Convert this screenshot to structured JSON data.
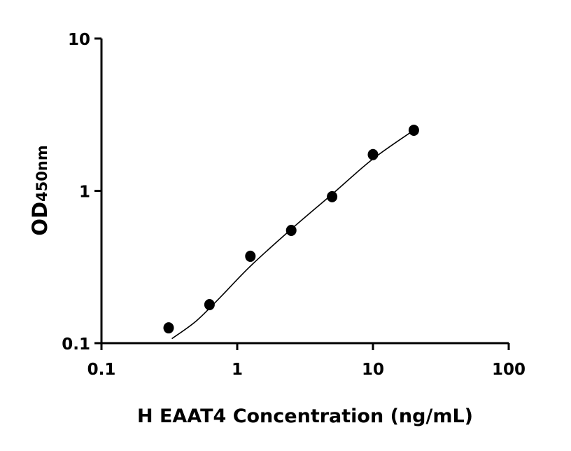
{
  "chart_data": {
    "type": "scatter",
    "title": "",
    "xlabel": "H EAAT4 Concentration (ng/mL)",
    "ylabel_main": "OD",
    "ylabel_sub": "450nm",
    "x_scale": "log",
    "y_scale": "log",
    "xlim": [
      0.1,
      100
    ],
    "ylim": [
      0.1,
      10
    ],
    "x_ticks": [
      {
        "value": 0.1,
        "label": "0.1"
      },
      {
        "value": 1,
        "label": "1"
      },
      {
        "value": 10,
        "label": "10"
      },
      {
        "value": 100,
        "label": "100"
      }
    ],
    "y_ticks": [
      {
        "value": 0.1,
        "label": "0.1"
      },
      {
        "value": 1,
        "label": "1"
      },
      {
        "value": 10,
        "label": "10"
      }
    ],
    "grid": false,
    "points": [
      {
        "x": 0.3125,
        "y": 0.126
      },
      {
        "x": 0.625,
        "y": 0.179
      },
      {
        "x": 1.25,
        "y": 0.372
      },
      {
        "x": 2.5,
        "y": 0.55
      },
      {
        "x": 5,
        "y": 0.915
      },
      {
        "x": 10,
        "y": 1.73
      },
      {
        "x": 20,
        "y": 2.5
      }
    ],
    "fit_curve": [
      {
        "x": 0.33,
        "y": 0.107
      },
      {
        "x": 0.5,
        "y": 0.14
      },
      {
        "x": 0.75,
        "y": 0.2
      },
      {
        "x": 1.25,
        "y": 0.32
      },
      {
        "x": 2.5,
        "y": 0.56
      },
      {
        "x": 5,
        "y": 0.95
      },
      {
        "x": 10,
        "y": 1.62
      },
      {
        "x": 20,
        "y": 2.5
      }
    ],
    "colors": {
      "points": "#000000",
      "curve": "#000000",
      "axes": "#000000"
    }
  }
}
